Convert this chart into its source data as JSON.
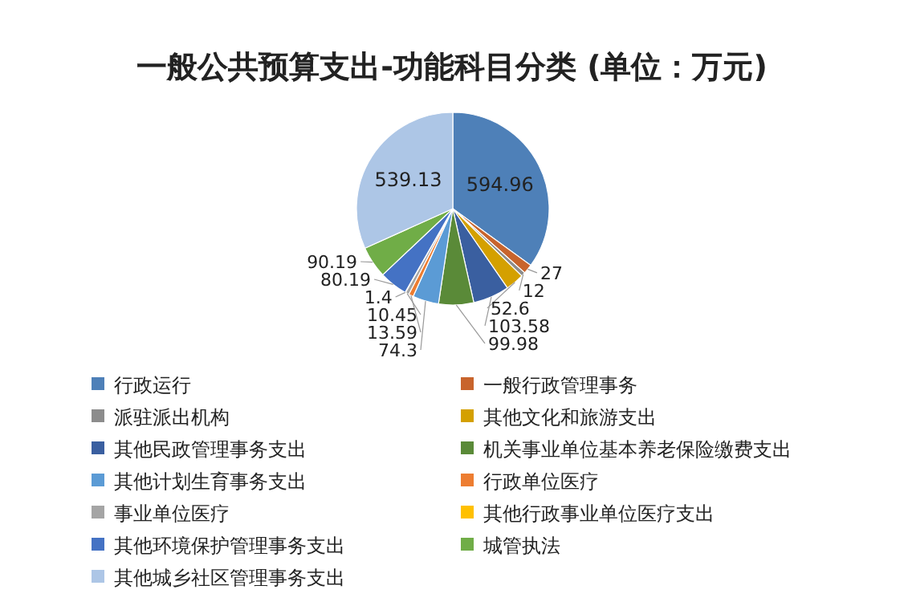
{
  "chart_data": {
    "type": "pie",
    "title": "一般公共预算支出-功能科目分类 (单位：万元)",
    "categories": [
      "行政运行",
      "一般行政管理事务",
      "派驻派出机构",
      "其他文化和旅游支出",
      "其他民政管理事务支出",
      "机关事业单位基本养老保险缴费支出",
      "其他计划生育事务支出",
      "行政单位医疗",
      "事业单位医疗",
      "其他行政事业单位医疗支出",
      "其他环境保护管理事务支出",
      "城管执法",
      "其他城乡社区管理事务支出"
    ],
    "values": [
      594.96,
      27,
      12,
      52.6,
      103.58,
      99.98,
      74.3,
      13.59,
      10.45,
      1.4,
      80.19,
      90.19,
      539.13
    ],
    "colors": [
      "#4e80b8",
      "#c8642c",
      "#8c8c8c",
      "#d4a000",
      "#3a5fa0",
      "#5a8a38",
      "#5b9bd5",
      "#ed7d31",
      "#a5a5a5",
      "#ffc000",
      "#4472c4",
      "#70ad47",
      "#adc6e6"
    ],
    "data_labels": true,
    "legend": "bottom"
  }
}
